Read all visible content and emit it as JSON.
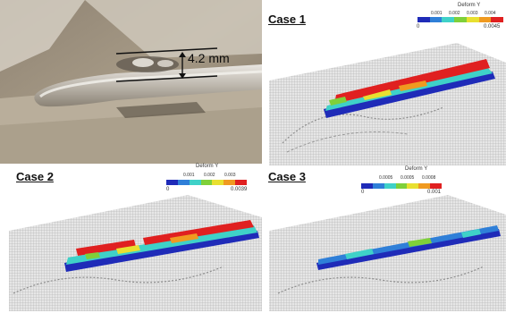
{
  "photo": {
    "measure_label": "4.2 mm"
  },
  "case1": {
    "title": "Case 1",
    "legend": {
      "title": "Deform Y",
      "ticks": [
        "0.001",
        "0.002",
        "0.003",
        "0.004"
      ],
      "min": "0",
      "max": "0.0045"
    }
  },
  "case2": {
    "title": "Case 2",
    "legend": {
      "title": "Deform Y",
      "ticks": [
        "0.001",
        "0.002",
        "0.003"
      ],
      "min": "0",
      "max": "0.0039"
    }
  },
  "case3": {
    "title": "Case 3",
    "legend": {
      "title": "Deform Y",
      "ticks": [
        "0.0005",
        "0.0005",
        "0.0008"
      ],
      "min": "0",
      "max": "0.001"
    }
  },
  "colors": {
    "scale": [
      "#1f2bb8",
      "#2f7fd8",
      "#3fd1c8",
      "#7fd03a",
      "#e8e030",
      "#f09a20",
      "#e02020"
    ],
    "mesh": "#c9c9c9"
  }
}
